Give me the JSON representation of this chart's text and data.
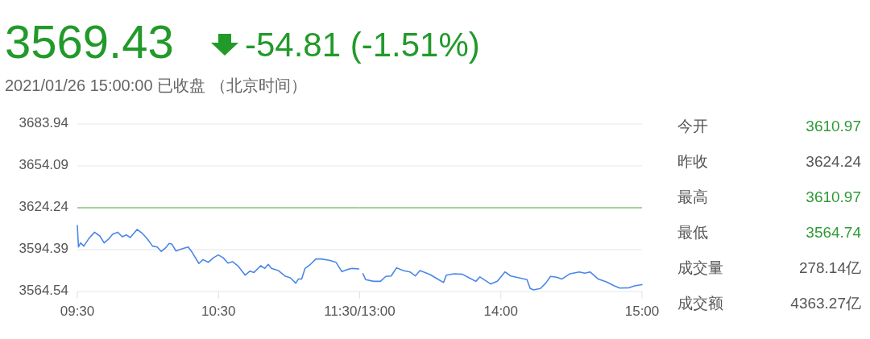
{
  "chart_data": [
    {
      "type": "line",
      "title": "3569.43",
      "subtitle": "-54.81 (-1.51%)",
      "annotations": [
        "2021/01/26 15:00:00 已收盘 （北京时间）"
      ],
      "xlim": [
        9.5,
        11.5
      ],
      "xticks": [
        {
          "value": 9.5,
          "label": "09:30"
        },
        {
          "value": 10.5,
          "label": "10:30"
        },
        {
          "value": 11.5,
          "label": "11:30/13:00"
        }
      ],
      "ylim": [
        3564.54,
        3683.94
      ],
      "yticks": [
        3564.54,
        3594.39,
        3624.24,
        3654.09,
        3683.94
      ],
      "grid": "y",
      "ref_lines": [
        {
          "axis": "y",
          "value": 3624.24,
          "color": "#8cc67e"
        }
      ],
      "series": [
        {
          "color": "#4a86e8",
          "x": [
            9.5,
            9.508,
            9.523,
            9.546,
            9.58,
            9.622,
            9.66,
            9.69,
            9.723,
            9.751,
            9.786,
            9.818,
            9.847,
            9.875,
            9.923,
            9.961,
            9.995,
            10.033,
            10.066,
            10.094,
            10.123,
            10.151,
            10.17,
            10.199,
            10.224,
            10.256,
            10.285,
            10.313,
            10.361,
            10.39,
            10.428,
            10.466,
            10.498,
            10.532,
            10.567,
            10.599,
            10.637,
            10.689,
            10.723,
            10.751,
            10.799,
            10.828,
            10.852,
            10.875,
            10.923,
            10.97,
            11.009,
            11.047,
            11.066,
            11.089,
            11.113,
            11.151,
            11.19,
            11.228,
            11.285,
            11.332,
            11.374,
            11.409,
            11.447,
            11.494
          ],
          "values": [
            3611.6,
            3596.3,
            3599.2,
            3596.9,
            3602.1,
            3606.8,
            3604.0,
            3599.2,
            3602.1,
            3605.5,
            3606.8,
            3603.6,
            3604.9,
            3603.0,
            3608.8,
            3605.9,
            3602.1,
            3596.9,
            3596.3,
            3593.1,
            3595.4,
            3598.8,
            3598.2,
            3593.4,
            3594.4,
            3595.4,
            3596.3,
            3592.5,
            3584.5,
            3587.3,
            3585.4,
            3588.7,
            3590.6,
            3588.7,
            3584.8,
            3585.8,
            3582.9,
            3576.2,
            3579.1,
            3578.1,
            3582.9,
            3581.0,
            3583.9,
            3581.0,
            3579.5,
            3575.6,
            3574.3,
            3570.5,
            3573.4,
            3573.4,
            3581.0,
            3583.9,
            3587.7,
            3587.7,
            3586.8,
            3585.4,
            3578.7,
            3580.1,
            3581.0,
            3580.6
          ]
        }
      ]
    },
    {
      "type": "line",
      "xlim": [
        13,
        15
      ],
      "xticks": [
        {
          "value": 13,
          "label": null
        },
        {
          "value": 14,
          "label": "14:00"
        },
        {
          "value": 15,
          "label": "15:00"
        }
      ],
      "ylim": [
        3564.54,
        3683.94
      ],
      "yticks": [
        3564.54,
        3594.39,
        3624.24,
        3654.09,
        3683.94
      ],
      "tick_labels": "x",
      "grid": "y",
      "ref_lines": [
        {
          "axis": "y",
          "value": 3624.24,
          "color": "#8cc67e"
        }
      ],
      "series": [
        {
          "color": "#4a86e8",
          "x": [
            13.023,
            13.042,
            13.099,
            13.147,
            13.185,
            13.223,
            13.261,
            13.309,
            13.356,
            13.394,
            13.427,
            13.499,
            13.537,
            13.594,
            13.613,
            13.67,
            13.728,
            13.775,
            13.823,
            13.851,
            13.928,
            13.975,
            14.029,
            14.07,
            14.128,
            14.185,
            14.208,
            14.232,
            14.28,
            14.318,
            14.352,
            14.394,
            14.432,
            14.49,
            14.556,
            14.594,
            14.632,
            14.69,
            14.747,
            14.804,
            14.842,
            14.909,
            14.947,
            15.0
          ],
          "values": [
            3577.2,
            3573.0,
            3571.8,
            3571.8,
            3575.3,
            3575.6,
            3581.4,
            3579.5,
            3578.5,
            3575.6,
            3579.5,
            3576.6,
            3574.3,
            3570.9,
            3576.2,
            3577.2,
            3576.8,
            3574.3,
            3571.8,
            3574.9,
            3569.9,
            3571.8,
            3578.5,
            3575.6,
            3574.3,
            3573.0,
            3566.7,
            3565.7,
            3566.7,
            3570.5,
            3575.3,
            3574.7,
            3573.4,
            3577.2,
            3578.5,
            3577.6,
            3578.5,
            3573.4,
            3571.4,
            3568.6,
            3567.0,
            3567.2,
            3568.6,
            3569.4
          ]
        }
      ]
    },
    {
      "type": "other",
      "categories": [
        "今开",
        "昨收",
        "最高",
        "最低",
        "成交量",
        "成交额"
      ],
      "value_labels": [
        "3610.97",
        "3624.24",
        "3610.97",
        "3564.74",
        "278.14亿",
        "4363.27亿"
      ],
      "colors": [
        "#2e9a35",
        "#555555",
        "#2e9a35",
        "#2e9a35",
        "#555555",
        "#555555"
      ]
    }
  ]
}
